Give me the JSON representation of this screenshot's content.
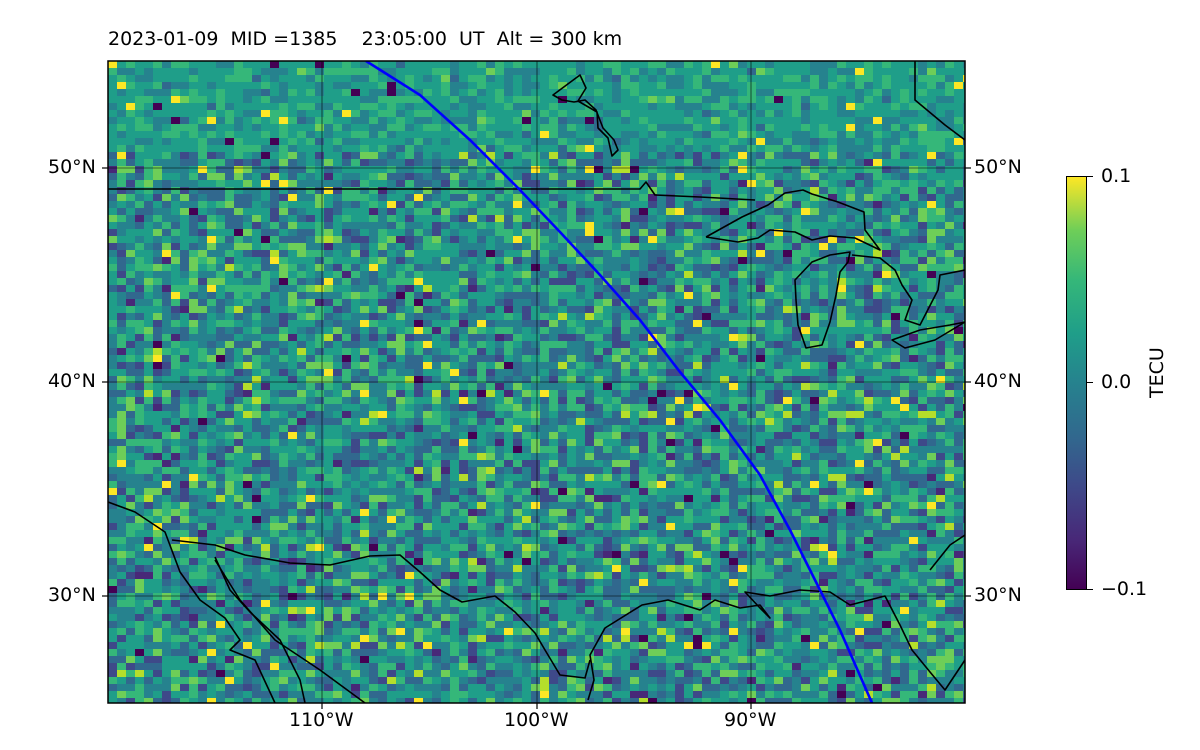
{
  "title": "2023-01-09  MID =1385    23:05:00  UT  Alt = 300 km",
  "map": {
    "lon_range": [
      -120,
      -80
    ],
    "lat_range": [
      25,
      55
    ],
    "lat_ticks": [
      "50°N",
      "40°N",
      "30°N"
    ],
    "lon_ticks": [
      "110°W",
      "100°W",
      "90°W"
    ],
    "field_description": "differential TEC",
    "track_color": "#0000ff",
    "coastline_color": "#000000",
    "gridlines": true
  },
  "colorbar": {
    "label": "TECU",
    "ticks": [
      "0.1",
      "0.0",
      "−0.1"
    ],
    "min": -0.1,
    "max": 0.1,
    "colormap": "viridis"
  }
}
